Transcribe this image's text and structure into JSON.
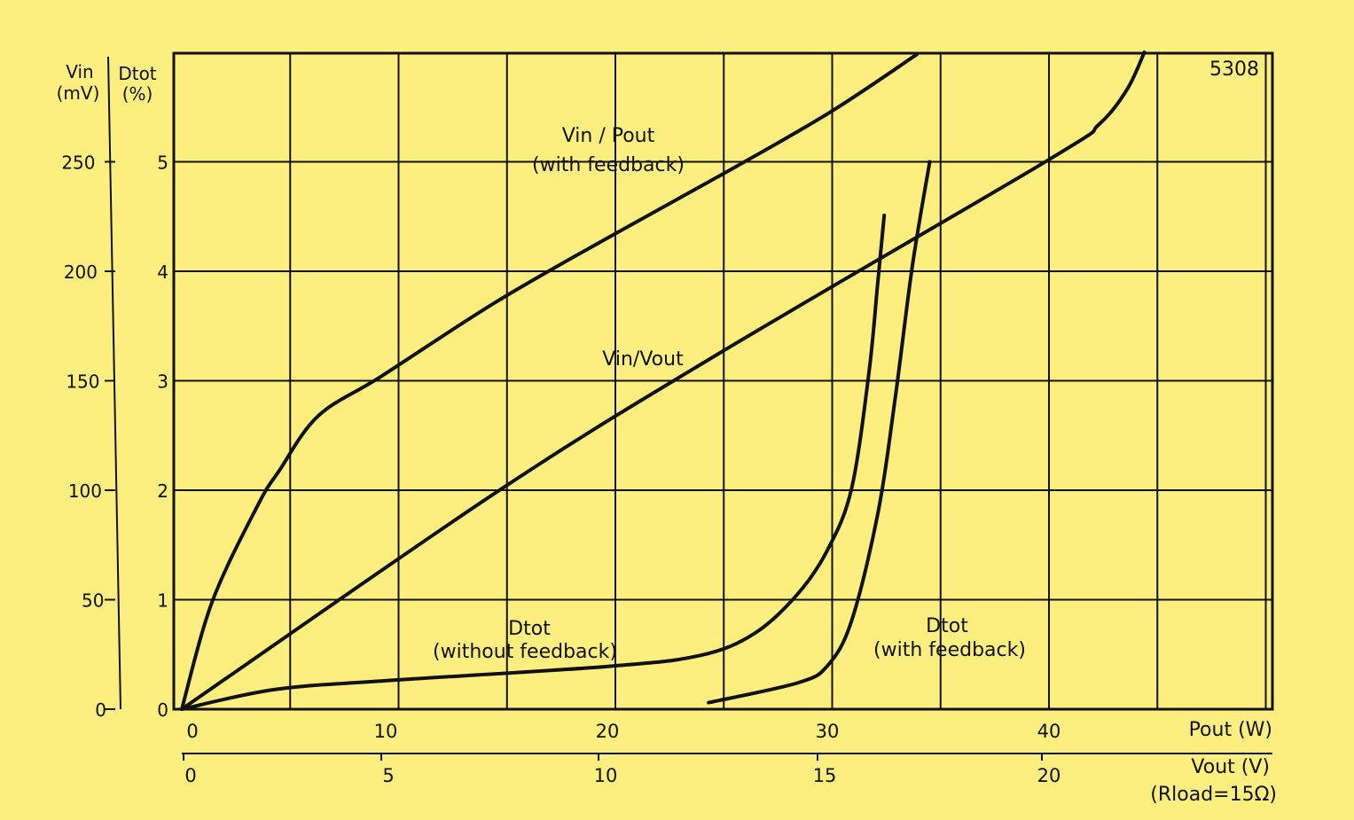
{
  "chart_data": {
    "type": "line",
    "figure_number": "5308",
    "xlabel": "Pout (W)",
    "x2label": "Vout (V)",
    "x2note": "(Rload=15Ω)",
    "ylabel_left": [
      "Vin",
      "(mV)"
    ],
    "ylabel_right": [
      "Dtot",
      "(%)"
    ],
    "xlim": [
      0,
      49
    ],
    "ylim_vin": [
      0,
      300
    ],
    "ylim_dtot": [
      0,
      6
    ],
    "grid": true,
    "x_ticks": [
      "0",
      "10",
      "20",
      "30",
      "40"
    ],
    "x_tick_values": [
      0,
      10,
      20,
      30,
      40
    ],
    "x2_ticks": [
      "0",
      "5",
      "10",
      "15",
      "20"
    ],
    "vin_ticks": [
      "0",
      "50",
      "100",
      "150",
      "200",
      "250"
    ],
    "vin_tick_values": [
      0,
      50,
      100,
      150,
      200,
      250
    ],
    "dtot_ticks": [
      "0",
      "1",
      "2",
      "3",
      "4",
      "5"
    ],
    "series": [
      {
        "name": "Vin / Pout (with feedback)",
        "label_lines": [
          "Vin / Pout",
          "(with feedback)"
        ],
        "axis": "vin",
        "x": [
          0,
          1.4,
          3.5,
          4.5,
          6.3,
          9.2,
          14.5,
          19.6,
          24.7,
          29.8,
          33.9
        ],
        "y": [
          0,
          49,
          93,
          109,
          134,
          152,
          186,
          215,
          243,
          272,
          299
        ]
      },
      {
        "name": "Vin/Vout",
        "label_lines": [
          "Vin/Vout"
        ],
        "axis": "vin",
        "x": [
          0,
          14.5,
          24.7,
          40,
          42.3,
          43.6,
          44.4
        ],
        "y": [
          0,
          99,
          162,
          251,
          267,
          283,
          300
        ]
      },
      {
        "name": "Dtot (without feedback)",
        "label_lines": [
          "Dtot",
          "(without feedback)"
        ],
        "axis": "dtot",
        "x": [
          0,
          4.3,
          9.4,
          19.6,
          23.9,
          26.4,
          28.4,
          29.8,
          30.9,
          31.7,
          32.1,
          32.4
        ],
        "y": [
          0,
          0.18,
          0.26,
          0.39,
          0.49,
          0.69,
          1.05,
          1.46,
          2.02,
          3.08,
          3.89,
          4.51
        ]
      },
      {
        "name": "Dtot (with feedback)",
        "label_lines": [
          "Dtot",
          "(with feedback)"
        ],
        "axis": "dtot",
        "x": [
          24.3,
          28.4,
          29.8,
          30.9,
          32.1,
          32.9,
          33.7,
          34.5
        ],
        "y": [
          0.06,
          0.24,
          0.4,
          0.81,
          1.78,
          2.83,
          4.05,
          5.0
        ]
      }
    ]
  }
}
